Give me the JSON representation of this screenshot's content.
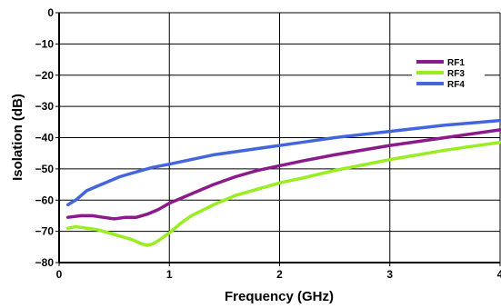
{
  "chart_data": {
    "type": "line",
    "title": "",
    "xlabel": "Frequency (GHz)",
    "ylabel": "Isolation (dB)",
    "xlim": [
      0,
      4
    ],
    "ylim": [
      -80,
      0
    ],
    "x_ticks": [
      0,
      1,
      2,
      3,
      4
    ],
    "y_ticks": [
      0,
      -10,
      -20,
      -30,
      -40,
      -50,
      -60,
      -70,
      -80
    ],
    "x_tick_labels": [
      "0",
      "1",
      "2",
      "3",
      "4"
    ],
    "y_tick_labels": [
      "0",
      "−10",
      "−20",
      "−30",
      "−40",
      "−50",
      "−60",
      "−70",
      "−80"
    ],
    "grid": true,
    "legend_position": "top-right",
    "series": [
      {
        "name": "RF1",
        "color": "#8B1A8B",
        "x": [
          0.08,
          0.2,
          0.3,
          0.4,
          0.5,
          0.6,
          0.7,
          0.8,
          0.9,
          1.0,
          1.2,
          1.4,
          1.6,
          1.8,
          2.0,
          2.2,
          2.5,
          3.0,
          3.5,
          4.0
        ],
        "y": [
          -65.5,
          -65,
          -65,
          -65.5,
          -66,
          -65.5,
          -65.5,
          -64.5,
          -63,
          -61,
          -58,
          -55,
          -52.5,
          -50.5,
          -49,
          -47.5,
          -45.5,
          -42.5,
          -40,
          -37.5
        ]
      },
      {
        "name": "RF3",
        "color": "#99EE22",
        "x": [
          0.08,
          0.15,
          0.25,
          0.35,
          0.45,
          0.55,
          0.65,
          0.75,
          0.8,
          0.85,
          0.9,
          1.0,
          1.1,
          1.2,
          1.4,
          1.6,
          1.8,
          2.0,
          2.2,
          2.5,
          3.0,
          3.5,
          4.0
        ],
        "y": [
          -69,
          -68.5,
          -69,
          -69.5,
          -70.5,
          -71.5,
          -72.5,
          -74,
          -74.5,
          -74,
          -73,
          -70.5,
          -67.5,
          -65,
          -61.5,
          -58.5,
          -56.5,
          -54.5,
          -53,
          -50.5,
          -47,
          -44,
          -41.5
        ]
      },
      {
        "name": "RF4",
        "color": "#4466DD",
        "x": [
          0.08,
          0.15,
          0.25,
          0.35,
          0.45,
          0.55,
          0.65,
          0.75,
          0.85,
          1.0,
          1.2,
          1.4,
          1.6,
          1.8,
          2.0,
          2.2,
          2.5,
          3.0,
          3.5,
          4.0
        ],
        "y": [
          -61.5,
          -60,
          -57,
          -55.5,
          -54,
          -52.5,
          -51.5,
          -50.5,
          -49.5,
          -48.5,
          -47,
          -45.5,
          -44.5,
          -43.5,
          -42.5,
          -41.5,
          -40,
          -38,
          -36,
          -34.5
        ]
      }
    ]
  }
}
